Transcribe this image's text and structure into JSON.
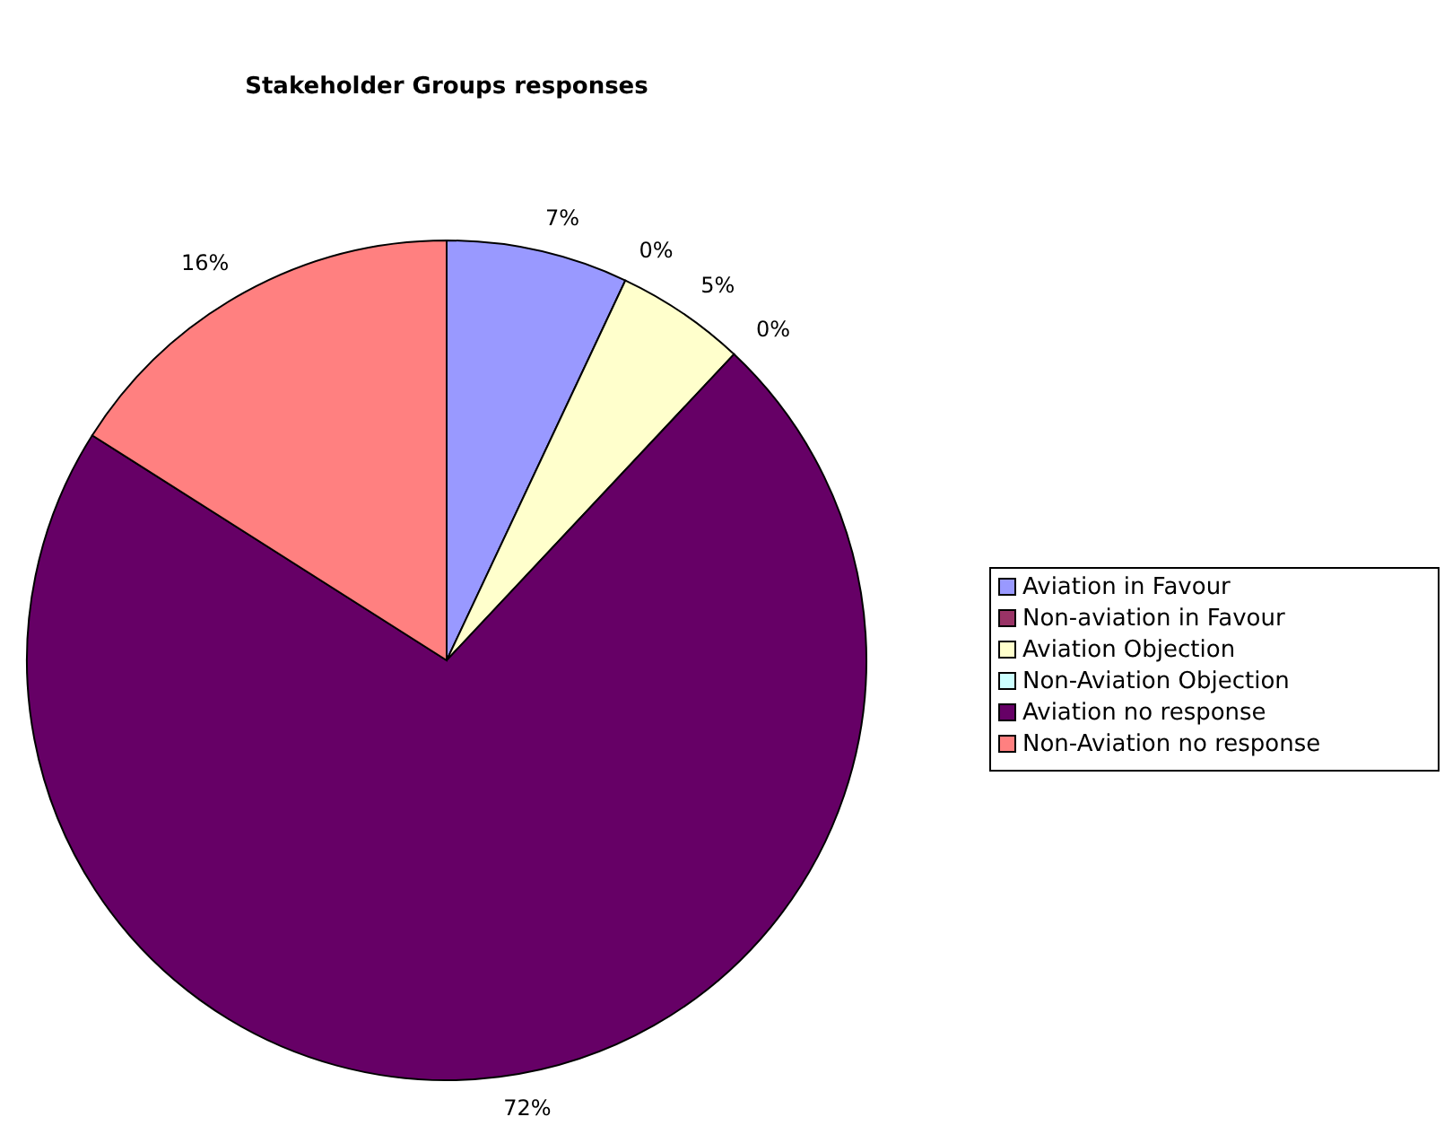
{
  "chart_data": {
    "type": "pie",
    "title": "Stakeholder Groups responses",
    "categories": [
      "Aviation in Favour",
      "Non-aviation in Favour",
      "Aviation Objection",
      "Non-Aviation Objection",
      "Aviation no response",
      "Non-Aviation no response"
    ],
    "values": [
      7,
      0,
      5,
      0,
      72,
      16
    ],
    "value_labels": [
      "7%",
      "0%",
      "5%",
      "0%",
      "72%",
      "16%"
    ],
    "colors": [
      "#9999ff",
      "#993366",
      "#ffffcc",
      "#ccffff",
      "#660066",
      "#ff8080"
    ],
    "legend": "right"
  }
}
